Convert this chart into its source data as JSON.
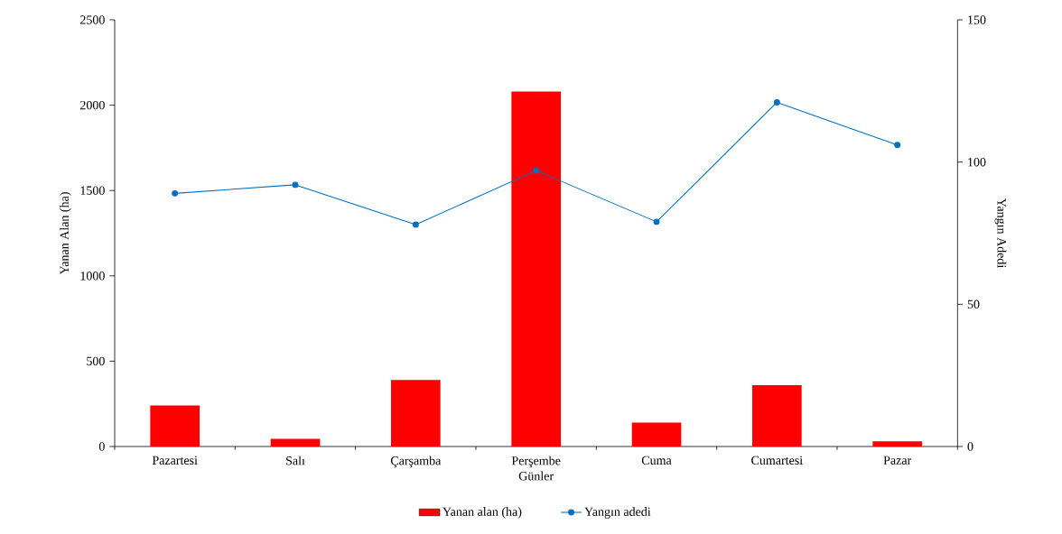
{
  "chart_data": {
    "type": "bar",
    "xlabel": "Günler",
    "ylabel": "Yanan Alan (ha)",
    "y2label": "Yangın Adedi",
    "categories": [
      "Pazartesi",
      "Salı",
      "Çarşamba",
      "Perşembe",
      "Cuma",
      "Cumartesi",
      "Pazar"
    ],
    "series": [
      {
        "name": "Yanan alan (ha)",
        "color": "#ff0000",
        "values": [
          240,
          45,
          390,
          2080,
          140,
          360,
          30
        ]
      },
      {
        "name": "Yangın adedi",
        "type": "line",
        "axis": "y2",
        "color": "#0070c0",
        "values": [
          89,
          92,
          78,
          97,
          79,
          121,
          106
        ]
      }
    ],
    "ylim": [
      0,
      2500
    ],
    "yticks": [
      0,
      500,
      1000,
      1500,
      2000,
      2500
    ],
    "y2lim": [
      0,
      150
    ],
    "y2ticks": [
      0,
      50,
      100,
      150
    ],
    "marker": "circle",
    "legend": "bottom",
    "grid": false
  }
}
